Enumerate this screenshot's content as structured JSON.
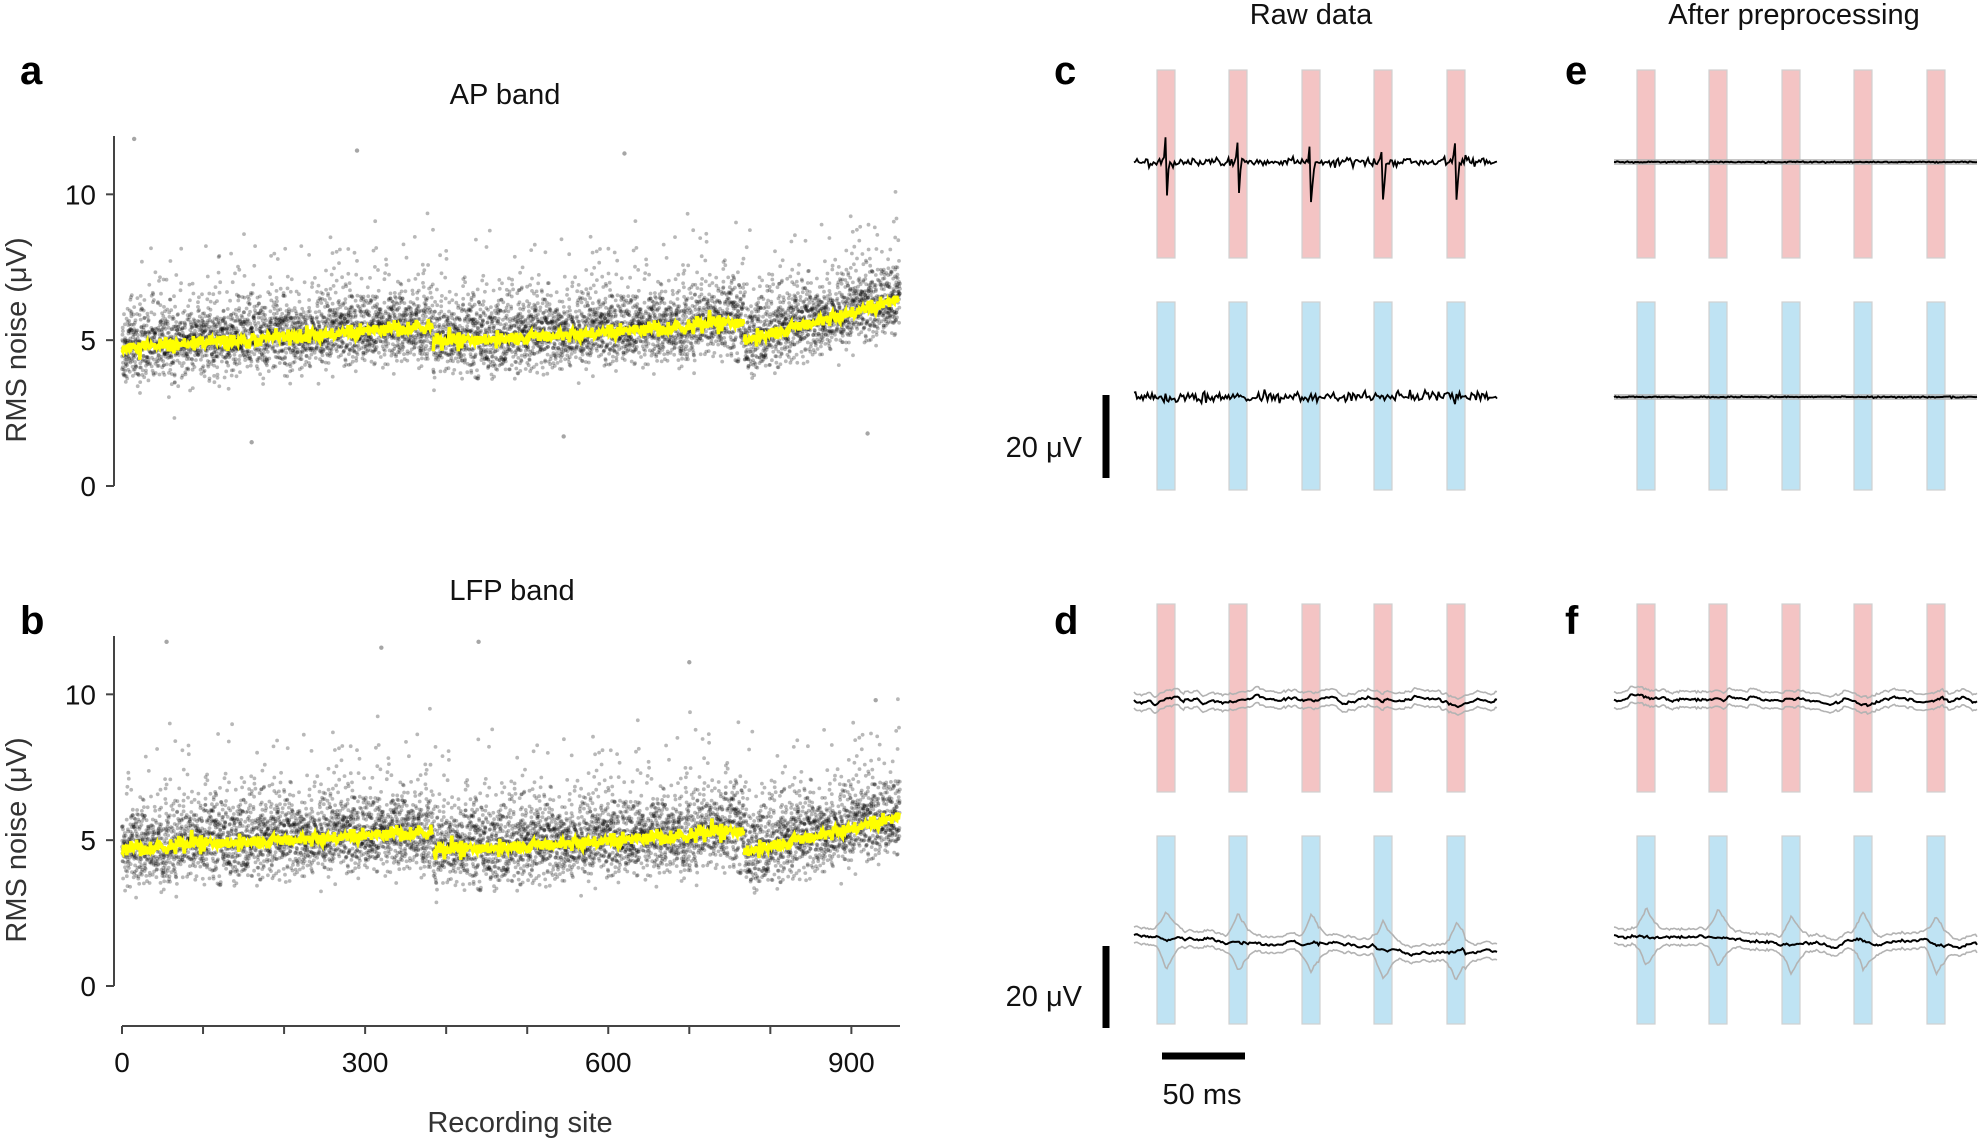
{
  "panel_labels": {
    "a": "a",
    "b": "b",
    "c": "c",
    "d": "d",
    "e": "e",
    "f": "f"
  },
  "column_titles": {
    "raw": "Raw data",
    "pre": "After preprocessing"
  },
  "colors": {
    "points": "#000000",
    "median_line": "#ffff00",
    "red_band": "#f4c4c4",
    "blue_band": "#bfe3f3",
    "trace": "#000000",
    "trace_spread": "#b3b3b3"
  },
  "scalebars": {
    "c_v": "20 μV",
    "d_v": "20 μV",
    "time": "50 ms"
  },
  "chart_data": [
    {
      "id": "a",
      "type": "scatter",
      "title": "AP band",
      "xlabel": "",
      "ylabel": "RMS noise (μV)",
      "xlim": [
        0,
        960
      ],
      "ylim": [
        0,
        12
      ],
      "yticks": [
        0,
        5,
        10
      ],
      "segments": [
        {
          "x_range": [
            0,
            384
          ],
          "median_start": 4.7,
          "median_end": 5.5
        },
        {
          "x_range": [
            384,
            768
          ],
          "median_start": 4.9,
          "median_end": 5.6
        },
        {
          "x_range": [
            768,
            960
          ],
          "median_start": 5.0,
          "median_end": 6.4
        }
      ],
      "outlier_points": [
        [
          15,
          11.9
        ],
        [
          160,
          1.5
        ],
        [
          545,
          1.7
        ],
        [
          920,
          1.8
        ],
        [
          290,
          11.5
        ],
        [
          620,
          11.4
        ]
      ],
      "series": [
        {
          "type": "points"
        },
        {
          "type": "median_line"
        }
      ]
    },
    {
      "id": "b",
      "type": "scatter",
      "title": "LFP band",
      "xlabel": "Recording site",
      "ylabel": "RMS noise (μV)",
      "xlim": [
        0,
        960
      ],
      "ylim": [
        0,
        12
      ],
      "yticks": [
        0,
        5,
        10
      ],
      "xticks": [
        0,
        300,
        600,
        900
      ],
      "segments": [
        {
          "x_range": [
            0,
            384
          ],
          "median_start": 4.7,
          "median_end": 5.3
        },
        {
          "x_range": [
            384,
            768
          ],
          "median_start": 4.6,
          "median_end": 5.3
        },
        {
          "x_range": [
            768,
            960
          ],
          "median_start": 4.6,
          "median_end": 5.8
        }
      ],
      "outlier_points": [
        [
          55,
          11.8
        ],
        [
          320,
          11.6
        ],
        [
          440,
          11.8
        ],
        [
          700,
          11.1
        ],
        [
          930,
          9.8
        ]
      ],
      "series": [
        {
          "type": "points"
        },
        {
          "type": "median_line"
        }
      ]
    },
    {
      "id": "c",
      "type": "line",
      "title": "",
      "xlabel": "",
      "ylabel": "",
      "note": "AP band raw traces, red-marked (top) and blue-marked (bottom) channels",
      "traces": [
        {
          "band": "red",
          "spikes": true
        },
        {
          "band": "blue",
          "spikes": false
        }
      ],
      "band_count": 5
    },
    {
      "id": "d",
      "type": "line",
      "title": "",
      "xlabel": "",
      "ylabel": "",
      "traces": [
        {
          "band": "red",
          "artifact": false
        },
        {
          "band": "blue",
          "artifact": true
        }
      ],
      "band_count": 5
    },
    {
      "id": "e",
      "type": "line",
      "title": "",
      "xlabel": "",
      "ylabel": "",
      "traces": [
        {
          "band": "red",
          "flat": true
        },
        {
          "band": "blue",
          "flat": true
        }
      ],
      "band_count": 5
    },
    {
      "id": "f",
      "type": "line",
      "title": "",
      "xlabel": "",
      "ylabel": "",
      "traces": [
        {
          "band": "red",
          "artifact": false
        },
        {
          "band": "blue",
          "artifact": true
        }
      ],
      "band_count": 5
    }
  ]
}
